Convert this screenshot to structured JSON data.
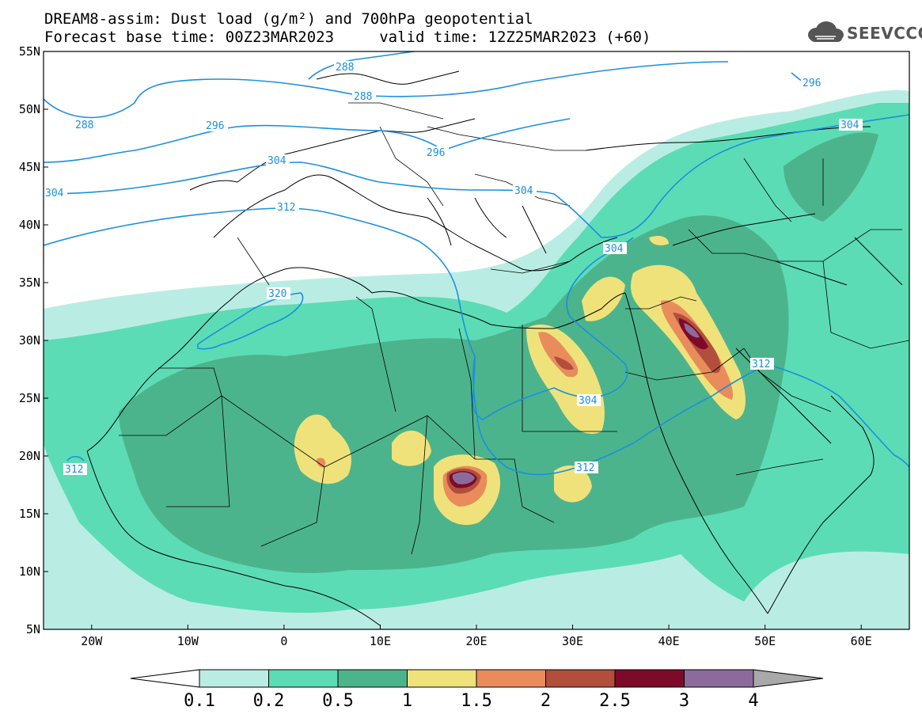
{
  "title": {
    "line1": "DREAM8-assim: Dust load (g/m²) and 700hPa geopotential",
    "line2": "Forecast base time: 00Z23MAR2023     valid time: 12Z25MAR2023 (+60)"
  },
  "logo": {
    "text": "SEEVCCC",
    "icon": "cloud-icon"
  },
  "map": {
    "lon_range": [
      -25,
      65
    ],
    "lat_range": [
      5,
      55
    ],
    "lat_ticks": [
      "55N",
      "50N",
      "45N",
      "40N",
      "35N",
      "30N",
      "25N",
      "20N",
      "15N",
      "10N",
      "5N"
    ],
    "lon_ticks": [
      "20W",
      "10W",
      "0",
      "10E",
      "20E",
      "30E",
      "40E",
      "50E",
      "60E"
    ],
    "contour_color": "#1b8fe0",
    "contour_labels": [
      "288",
      "288",
      "288",
      "296",
      "296",
      "296",
      "304",
      "304",
      "304",
      "304",
      "304",
      "304",
      "312",
      "312",
      "312",
      "312",
      "320"
    ]
  },
  "colorbar": {
    "ticks": [
      "0.1",
      "0.2",
      "0.5",
      "1",
      "1.5",
      "2",
      "2.5",
      "3",
      "4"
    ],
    "colors": [
      "#ffffff",
      "#b9ede3",
      "#5cdcb4",
      "#4cb48c",
      "#f0e27a",
      "#e98c5c",
      "#b24e3c",
      "#7e0a2a",
      "#8d6a9c",
      "#a9a9a9"
    ]
  }
}
